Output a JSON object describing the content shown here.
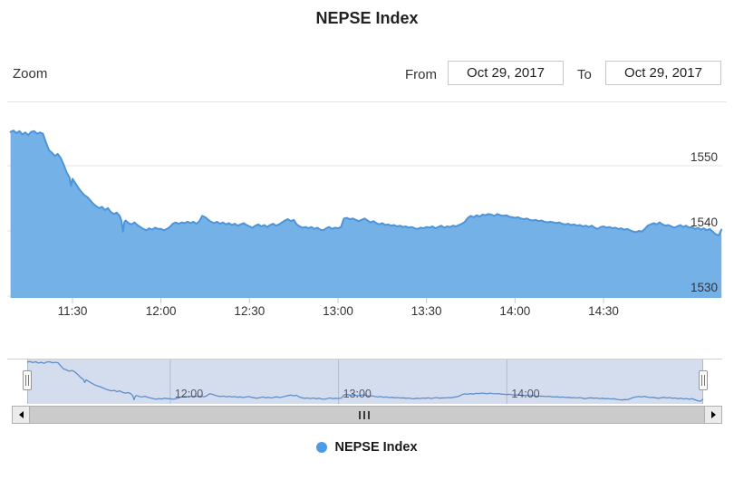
{
  "title": "NEPSE Index",
  "range_selector": {
    "zoom_label": "Zoom",
    "from_label": "From",
    "from_value": "Oct 29, 2017",
    "to_label": "To",
    "to_value": "Oct 29, 2017"
  },
  "legend": {
    "items": [
      {
        "label": "NEPSE Index",
        "marker_color": "#4D9BE6"
      }
    ]
  },
  "colors": {
    "area_fill": "#74B1E7",
    "area_line": "#4D94D9",
    "navigator_line": "#5E8FCB",
    "navigator_mask": "rgba(102,133,194,0.28)",
    "navigator_gridline": "rgba(80,90,110,0.25)",
    "grid": "#E6E6E6",
    "tick": "#C9C9C9",
    "axis_label": "#333333"
  },
  "chart_data": {
    "type": "area",
    "title": "NEPSE Index",
    "series_name": "NEPSE Index",
    "x_unit": "minutes after 11:00",
    "x_range": [
      9,
      250
    ],
    "ylim": [
      1530,
      1557
    ],
    "grid": "horizontal",
    "legend_position": "bottom-center",
    "yticks": [
      1530,
      1540,
      1550
    ],
    "xticks": [
      {
        "t": 30,
        "label": "11:30"
      },
      {
        "t": 60,
        "label": "12:00"
      },
      {
        "t": 90,
        "label": "12:30"
      },
      {
        "t": 120,
        "label": "13:00"
      },
      {
        "t": 150,
        "label": "13:30"
      },
      {
        "t": 180,
        "label": "14:00"
      },
      {
        "t": 210,
        "label": "14:30"
      }
    ],
    "navigator_ticks": [
      {
        "t": 60,
        "label": "12:00"
      },
      {
        "t": 120,
        "label": "13:00"
      },
      {
        "t": 180,
        "label": "14:00"
      }
    ],
    "points": [
      [
        9,
        1555.2
      ],
      [
        10,
        1555.4
      ],
      [
        11,
        1555.0
      ],
      [
        12,
        1555.3
      ],
      [
        13,
        1554.8
      ],
      [
        14,
        1555.1
      ],
      [
        15,
        1554.7
      ],
      [
        16,
        1555.2
      ],
      [
        17,
        1555.3
      ],
      [
        18,
        1554.9
      ],
      [
        19,
        1555.1
      ],
      [
        20,
        1554.9
      ],
      [
        21,
        1553.6
      ],
      [
        22,
        1552.4
      ],
      [
        23,
        1552.0
      ],
      [
        24,
        1551.5
      ],
      [
        25,
        1551.8
      ],
      [
        26,
        1551.2
      ],
      [
        27,
        1550.2
      ],
      [
        28,
        1549.0
      ],
      [
        29,
        1548.2
      ],
      [
        29.5,
        1546.9
      ],
      [
        30,
        1548.0
      ],
      [
        31,
        1547.3
      ],
      [
        32,
        1546.6
      ],
      [
        33,
        1546.0
      ],
      [
        34,
        1545.5
      ],
      [
        35,
        1545.2
      ],
      [
        36,
        1544.7
      ],
      [
        37,
        1544.2
      ],
      [
        38,
        1543.8
      ],
      [
        39,
        1543.5
      ],
      [
        40,
        1543.7
      ],
      [
        41,
        1543.2
      ],
      [
        42,
        1543.5
      ],
      [
        43,
        1542.9
      ],
      [
        44,
        1542.6
      ],
      [
        45,
        1542.8
      ],
      [
        46,
        1542.3
      ],
      [
        46.6,
        1541.6
      ],
      [
        47.1,
        1539.9
      ],
      [
        47.6,
        1541.4
      ],
      [
        48,
        1541.6
      ],
      [
        49,
        1541.2
      ],
      [
        50,
        1541.0
      ],
      [
        51,
        1541.3
      ],
      [
        52,
        1540.9
      ],
      [
        53,
        1540.6
      ],
      [
        54,
        1540.3
      ],
      [
        55,
        1540.1
      ],
      [
        56,
        1540.4
      ],
      [
        57,
        1540.2
      ],
      [
        58,
        1540.5
      ],
      [
        59,
        1540.3
      ],
      [
        60,
        1540.3
      ],
      [
        61,
        1540.1
      ],
      [
        62,
        1540.3
      ],
      [
        63,
        1540.6
      ],
      [
        64,
        1541.1
      ],
      [
        65,
        1541.3
      ],
      [
        66,
        1541.1
      ],
      [
        67,
        1541.3
      ],
      [
        68,
        1541.2
      ],
      [
        69,
        1541.4
      ],
      [
        70,
        1541.2
      ],
      [
        71,
        1541.4
      ],
      [
        72,
        1541.1
      ],
      [
        73,
        1541.5
      ],
      [
        74,
        1542.3
      ],
      [
        75,
        1542.1
      ],
      [
        76,
        1541.7
      ],
      [
        77,
        1541.4
      ],
      [
        78,
        1541.2
      ],
      [
        79,
        1541.4
      ],
      [
        80,
        1541.1
      ],
      [
        81,
        1541.3
      ],
      [
        82,
        1541.0
      ],
      [
        83,
        1541.2
      ],
      [
        84,
        1540.9
      ],
      [
        85,
        1541.1
      ],
      [
        86,
        1540.8
      ],
      [
        87,
        1541.0
      ],
      [
        88,
        1541.2
      ],
      [
        89,
        1540.9
      ],
      [
        90,
        1540.7
      ],
      [
        91,
        1540.5
      ],
      [
        92,
        1540.8
      ],
      [
        93,
        1541.0
      ],
      [
        94,
        1540.7
      ],
      [
        95,
        1540.9
      ],
      [
        96,
        1540.6
      ],
      [
        97,
        1540.9
      ],
      [
        98,
        1541.1
      ],
      [
        99,
        1540.8
      ],
      [
        100,
        1541.0
      ],
      [
        101,
        1541.3
      ],
      [
        102,
        1541.6
      ],
      [
        103,
        1541.8
      ],
      [
        104,
        1541.5
      ],
      [
        105,
        1541.7
      ],
      [
        106,
        1541.0
      ],
      [
        107,
        1540.7
      ],
      [
        108,
        1540.5
      ],
      [
        109,
        1540.6
      ],
      [
        110,
        1540.4
      ],
      [
        111,
        1540.6
      ],
      [
        112,
        1540.3
      ],
      [
        113,
        1540.5
      ],
      [
        114,
        1540.2
      ],
      [
        115,
        1540.1
      ],
      [
        116,
        1540.4
      ],
      [
        117,
        1540.6
      ],
      [
        118,
        1540.3
      ],
      [
        119,
        1540.5
      ],
      [
        120,
        1540.4
      ],
      [
        121,
        1540.6
      ],
      [
        122,
        1541.9
      ],
      [
        123,
        1542.0
      ],
      [
        124,
        1541.8
      ],
      [
        125,
        1541.9
      ],
      [
        126,
        1541.7
      ],
      [
        127,
        1541.5
      ],
      [
        128,
        1541.7
      ],
      [
        129,
        1541.9
      ],
      [
        130,
        1541.6
      ],
      [
        131,
        1541.3
      ],
      [
        132,
        1541.5
      ],
      [
        133,
        1541.2
      ],
      [
        134,
        1541.0
      ],
      [
        135,
        1541.2
      ],
      [
        136,
        1540.9
      ],
      [
        137,
        1541.0
      ],
      [
        138,
        1540.8
      ],
      [
        139,
        1540.9
      ],
      [
        140,
        1540.7
      ],
      [
        141,
        1540.8
      ],
      [
        142,
        1540.6
      ],
      [
        143,
        1540.7
      ],
      [
        144,
        1540.5
      ],
      [
        145,
        1540.6
      ],
      [
        146,
        1540.4
      ],
      [
        147,
        1540.3
      ],
      [
        148,
        1540.5
      ],
      [
        149,
        1540.4
      ],
      [
        150,
        1540.6
      ],
      [
        151,
        1540.5
      ],
      [
        152,
        1540.7
      ],
      [
        153,
        1540.4
      ],
      [
        154,
        1540.6
      ],
      [
        155,
        1540.8
      ],
      [
        156,
        1540.5
      ],
      [
        157,
        1540.7
      ],
      [
        158,
        1540.6
      ],
      [
        159,
        1540.8
      ],
      [
        160,
        1540.7
      ],
      [
        161,
        1540.9
      ],
      [
        162,
        1541.1
      ],
      [
        163,
        1541.4
      ],
      [
        164,
        1542.0
      ],
      [
        165,
        1542.3
      ],
      [
        166,
        1542.1
      ],
      [
        167,
        1542.4
      ],
      [
        168,
        1542.2
      ],
      [
        169,
        1542.5
      ],
      [
        170,
        1542.4
      ],
      [
        171,
        1542.6
      ],
      [
        172,
        1542.5
      ],
      [
        173,
        1542.3
      ],
      [
        174,
        1542.6
      ],
      [
        175,
        1542.4
      ],
      [
        176,
        1542.3
      ],
      [
        177,
        1542.4
      ],
      [
        178,
        1542.2
      ],
      [
        179,
        1542.1
      ],
      [
        180,
        1542.0
      ],
      [
        181,
        1542.1
      ],
      [
        182,
        1541.9
      ],
      [
        183,
        1541.8
      ],
      [
        184,
        1541.9
      ],
      [
        185,
        1541.7
      ],
      [
        186,
        1541.6
      ],
      [
        187,
        1541.7
      ],
      [
        188,
        1541.5
      ],
      [
        189,
        1541.6
      ],
      [
        190,
        1541.4
      ],
      [
        191,
        1541.3
      ],
      [
        192,
        1541.4
      ],
      [
        193,
        1541.3
      ],
      [
        194,
        1541.2
      ],
      [
        195,
        1541.3
      ],
      [
        196,
        1541.1
      ],
      [
        197,
        1541.0
      ],
      [
        198,
        1541.1
      ],
      [
        199,
        1540.9
      ],
      [
        200,
        1541.0
      ],
      [
        201,
        1540.8
      ],
      [
        202,
        1540.9
      ],
      [
        203,
        1540.7
      ],
      [
        204,
        1540.8
      ],
      [
        205,
        1540.6
      ],
      [
        206,
        1540.8
      ],
      [
        207,
        1540.5
      ],
      [
        208,
        1540.3
      ],
      [
        209,
        1540.6
      ],
      [
        210,
        1540.7
      ],
      [
        211,
        1540.5
      ],
      [
        212,
        1540.6
      ],
      [
        213,
        1540.4
      ],
      [
        214,
        1540.5
      ],
      [
        215,
        1540.3
      ],
      [
        216,
        1540.4
      ],
      [
        217,
        1540.2
      ],
      [
        218,
        1540.3
      ],
      [
        219,
        1540.1
      ],
      [
        220,
        1539.9
      ],
      [
        221,
        1539.8
      ],
      [
        222,
        1540.0
      ],
      [
        223,
        1539.9
      ],
      [
        224,
        1540.3
      ],
      [
        225,
        1540.8
      ],
      [
        226,
        1541.0
      ],
      [
        227,
        1541.2
      ],
      [
        228,
        1541.0
      ],
      [
        229,
        1541.3
      ],
      [
        230,
        1541.0
      ],
      [
        231,
        1540.8
      ],
      [
        232,
        1540.9
      ],
      [
        233,
        1540.7
      ],
      [
        234,
        1540.5
      ],
      [
        235,
        1540.7
      ],
      [
        236,
        1540.9
      ],
      [
        237,
        1540.6
      ],
      [
        238,
        1540.8
      ],
      [
        239,
        1540.5
      ],
      [
        240,
        1540.6
      ],
      [
        241,
        1540.3
      ],
      [
        242,
        1540.5
      ],
      [
        243,
        1540.2
      ],
      [
        244,
        1540.4
      ],
      [
        245,
        1540.1
      ],
      [
        246,
        1540.3
      ],
      [
        247,
        1539.9
      ],
      [
        248,
        1539.5
      ],
      [
        249,
        1539.3
      ],
      [
        250,
        1540.2
      ]
    ]
  }
}
